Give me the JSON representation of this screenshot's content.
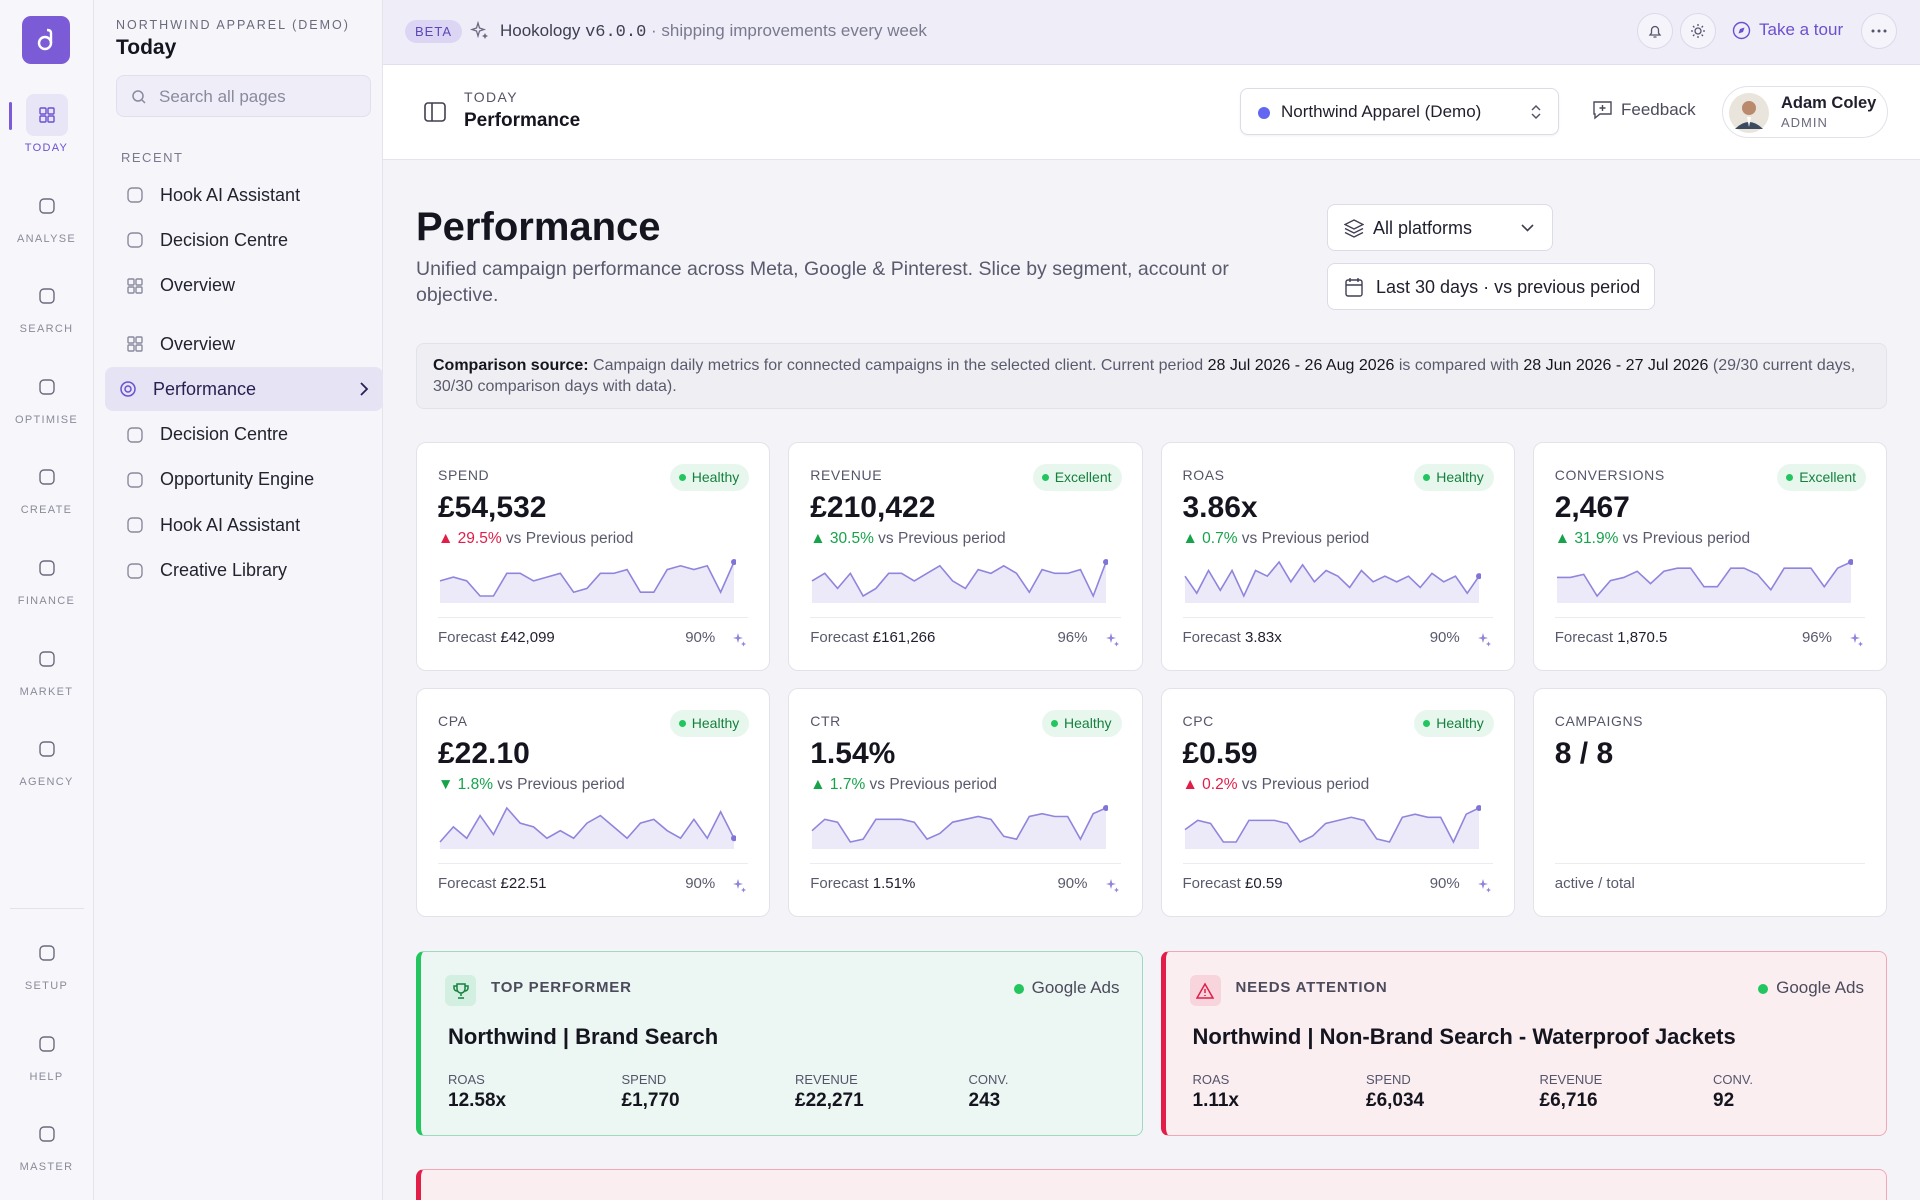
{
  "icon_rail": {
    "top": [
      "TODAY",
      "ANALYSE",
      "SEARCH",
      "OPTIMISE",
      "CREATE",
      "FINANCE",
      "MARKET",
      "AGENCY"
    ],
    "bottom": [
      "SETUP",
      "HELP",
      "MASTER"
    ]
  },
  "sidebar": {
    "org": "NORTHWIND APPAREL (DEMO)",
    "section": "Today",
    "search_placeholder": "Search all pages",
    "recent_heading": "RECENT",
    "recent": [
      "Hook AI Assistant",
      "Decision Centre",
      "Overview"
    ],
    "pages": [
      "Overview",
      "Performance",
      "Decision Centre",
      "Opportunity Engine",
      "Hook AI Assistant",
      "Creative Library"
    ]
  },
  "topbar": {
    "badge": "BETA",
    "product": "Hookology",
    "version": "v6.0.0",
    "tagline": "· shipping improvements every week",
    "tour": "Take a tour"
  },
  "header": {
    "eyebrow": "TODAY",
    "title": "Performance",
    "client": "Northwind Apparel (Demo)",
    "feedback": "Feedback",
    "user_name": "Adam Coley",
    "user_role": "ADMIN"
  },
  "page": {
    "title": "Performance",
    "subtitle": "Unified campaign performance across Meta, Google & Pinterest. Slice by segment, account or objective.",
    "platform_filter": "All platforms",
    "date_filter": "Last 30 days · vs previous period",
    "comparison": {
      "label": "Comparison source:",
      "text_1": "Campaign daily metrics for connected campaigns in the selected client. Current period",
      "current": "28 Jul 2026 - 26 Aug 2026",
      "text_2": "is compared with",
      "previous": "28 Jun 2026 - 27 Jul 2026",
      "text_3": "(29/30 current days, 30/30 comparison days with data)."
    }
  },
  "metrics": [
    {
      "label": "SPEND",
      "status": "Healthy",
      "value": "£54,532",
      "change": "▲ 29.5%",
      "change_color": "#e11d48",
      "change_note": "vs Previous period",
      "forecast_label": "Forecast",
      "forecast": "£42,099",
      "confidence": "90%",
      "spark": [
        5,
        5.5,
        5,
        3,
        3,
        6,
        6,
        5,
        5.5,
        6,
        3.5,
        4,
        6,
        6,
        6.5,
        3.5,
        3.5,
        6.5,
        7,
        6.5,
        7,
        3.5,
        7.5
      ]
    },
    {
      "label": "REVENUE",
      "status": "Excellent",
      "value": "£210,422",
      "change": "▲ 30.5%",
      "change_color": "#16a34a",
      "change_note": "vs Previous period",
      "forecast_label": "Forecast",
      "forecast": "£161,266",
      "confidence": "96%",
      "spark": [
        5,
        6,
        4,
        6,
        3,
        4,
        6,
        6,
        5,
        6,
        7,
        5,
        4,
        6.5,
        6,
        7,
        6,
        3.5,
        6.5,
        6,
        6,
        6.5,
        3,
        7.5
      ]
    },
    {
      "label": "ROAS",
      "status": "Healthy",
      "value": "3.86x",
      "change": "▲ 0.7%",
      "change_color": "#16a34a",
      "change_note": "vs Previous period",
      "forecast_label": "Forecast",
      "forecast": "3.83x",
      "confidence": "90%",
      "spark": [
        5,
        2,
        6,
        2.5,
        6,
        1.5,
        6,
        5,
        7.5,
        4,
        7,
        4,
        6,
        5,
        3,
        6,
        4,
        5,
        4,
        5,
        3,
        5.5,
        4,
        5,
        2,
        5
      ]
    },
    {
      "label": "CONVERSIONS",
      "status": "Excellent",
      "value": "2,467",
      "change": "▲ 31.9%",
      "change_color": "#16a34a",
      "change_note": "vs Previous period",
      "forecast_label": "Forecast",
      "forecast": "1,870.5",
      "confidence": "96%",
      "spark": [
        5,
        5,
        5.5,
        2,
        4.5,
        5,
        6,
        4,
        6,
        6.5,
        6.5,
        3.5,
        3.5,
        6.5,
        6.5,
        5.5,
        3,
        6.5,
        6.5,
        6.5,
        3.5,
        6.5,
        7.5
      ]
    },
    {
      "label": "CPA",
      "status": "Healthy",
      "value": "£22.10",
      "change": "▼ 1.8%",
      "change_color": "#16a34a",
      "change_note": "vs Previous period",
      "forecast_label": "Forecast",
      "forecast": "£22.51",
      "confidence": "90%",
      "spark": [
        2.5,
        4.5,
        3,
        6,
        3.5,
        7,
        5,
        4.5,
        3,
        4,
        3,
        5,
        6,
        4.5,
        3,
        5,
        5.5,
        4,
        3,
        5.5,
        3,
        6.5,
        3
      ]
    },
    {
      "label": "CTR",
      "status": "Healthy",
      "value": "1.54%",
      "change": "▲ 1.7%",
      "change_color": "#16a34a",
      "change_note": "vs Previous period",
      "forecast_label": "Forecast",
      "forecast": "1.51%",
      "confidence": "90%",
      "spark": [
        3.5,
        5.5,
        5,
        1.5,
        2,
        5.5,
        5.5,
        5.5,
        5,
        2,
        3,
        5,
        5.5,
        6,
        5.5,
        2.5,
        2,
        6,
        6.5,
        6,
        6,
        2,
        6.5,
        7.5
      ]
    },
    {
      "label": "CPC",
      "status": "Healthy",
      "value": "£0.59",
      "change": "▲ 0.2%",
      "change_color": "#e11d48",
      "change_note": "vs Previous period",
      "forecast_label": "Forecast",
      "forecast": "£0.59",
      "confidence": "90%",
      "spark": [
        4,
        5.5,
        5,
        2,
        2,
        5.5,
        5.5,
        5.5,
        5,
        2,
        3,
        5,
        5.5,
        6,
        5.5,
        2.5,
        2,
        6,
        6.5,
        6,
        6,
        2,
        6.5,
        7.5
      ]
    },
    {
      "label": "CAMPAIGNS",
      "value": "8 / 8",
      "footnote": "active / total"
    }
  ],
  "highlights": [
    {
      "kind": "TOP PERFORMER",
      "platform": "Google Ads",
      "campaign": "Northwind | Brand Search",
      "stats": [
        {
          "label": "ROAS",
          "value": "12.58x"
        },
        {
          "label": "SPEND",
          "value": "£1,770"
        },
        {
          "label": "REVENUE",
          "value": "£22,271"
        },
        {
          "label": "CONV.",
          "value": "243"
        }
      ]
    },
    {
      "kind": "NEEDS ATTENTION",
      "platform": "Google Ads",
      "campaign": "Northwind | Non-Brand Search - Waterproof Jackets",
      "stats": [
        {
          "label": "ROAS",
          "value": "1.11x"
        },
        {
          "label": "SPEND",
          "value": "£6,034"
        },
        {
          "label": "REVENUE",
          "value": "£6,716"
        },
        {
          "label": "CONV.",
          "value": "92"
        }
      ]
    }
  ]
}
